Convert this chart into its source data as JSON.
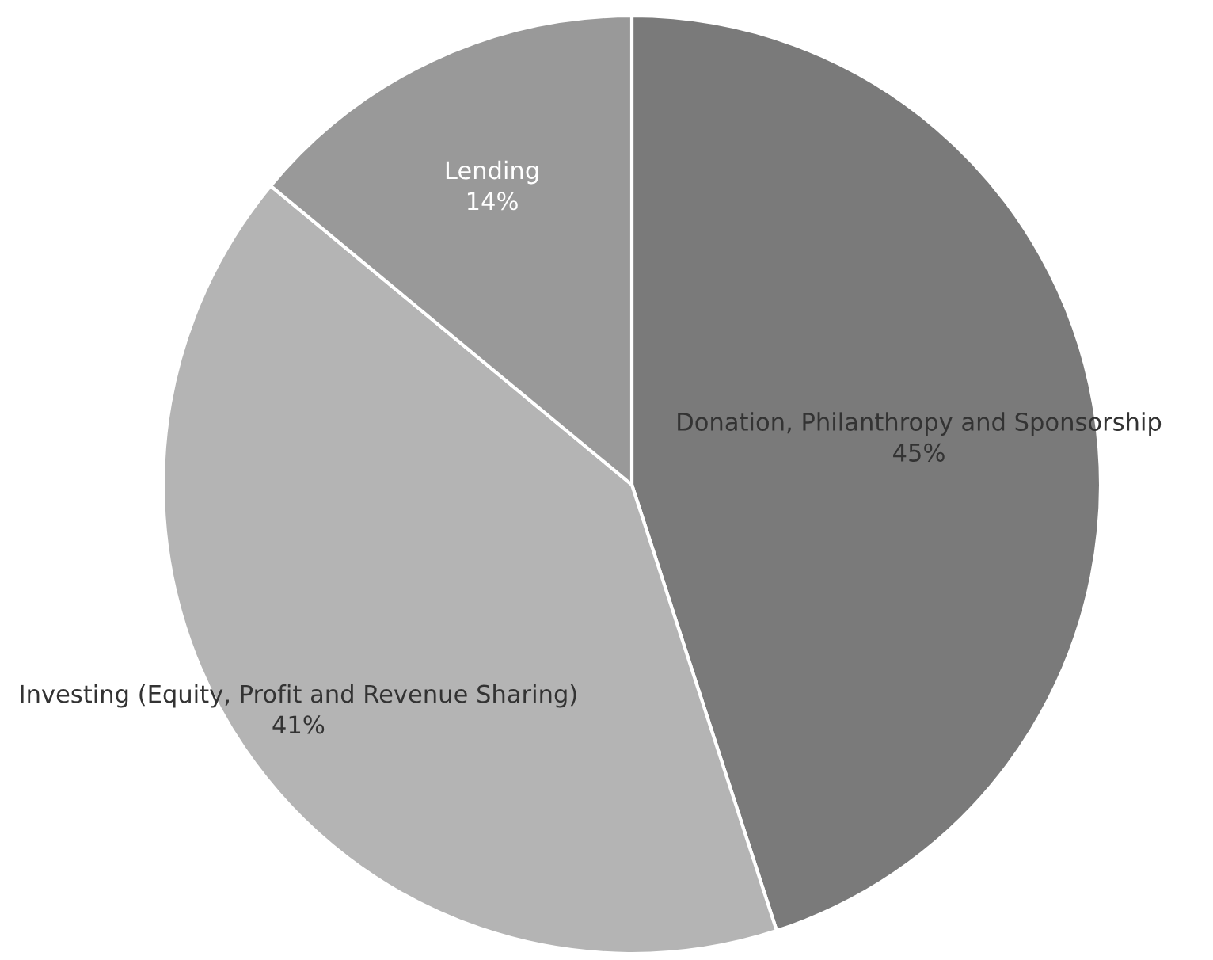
{
  "chart_data": {
    "type": "pie",
    "categories": [
      "Donation, Philanthropy and Sponsorship",
      "Investing (Equity, Profit and Revenue Sharing)",
      "Lending"
    ],
    "values": [
      45,
      41,
      14
    ],
    "value_labels": [
      "45%",
      "41%",
      "14%"
    ],
    "colors": [
      "#7a7a7a",
      "#b4b4b4",
      "#999999"
    ]
  }
}
